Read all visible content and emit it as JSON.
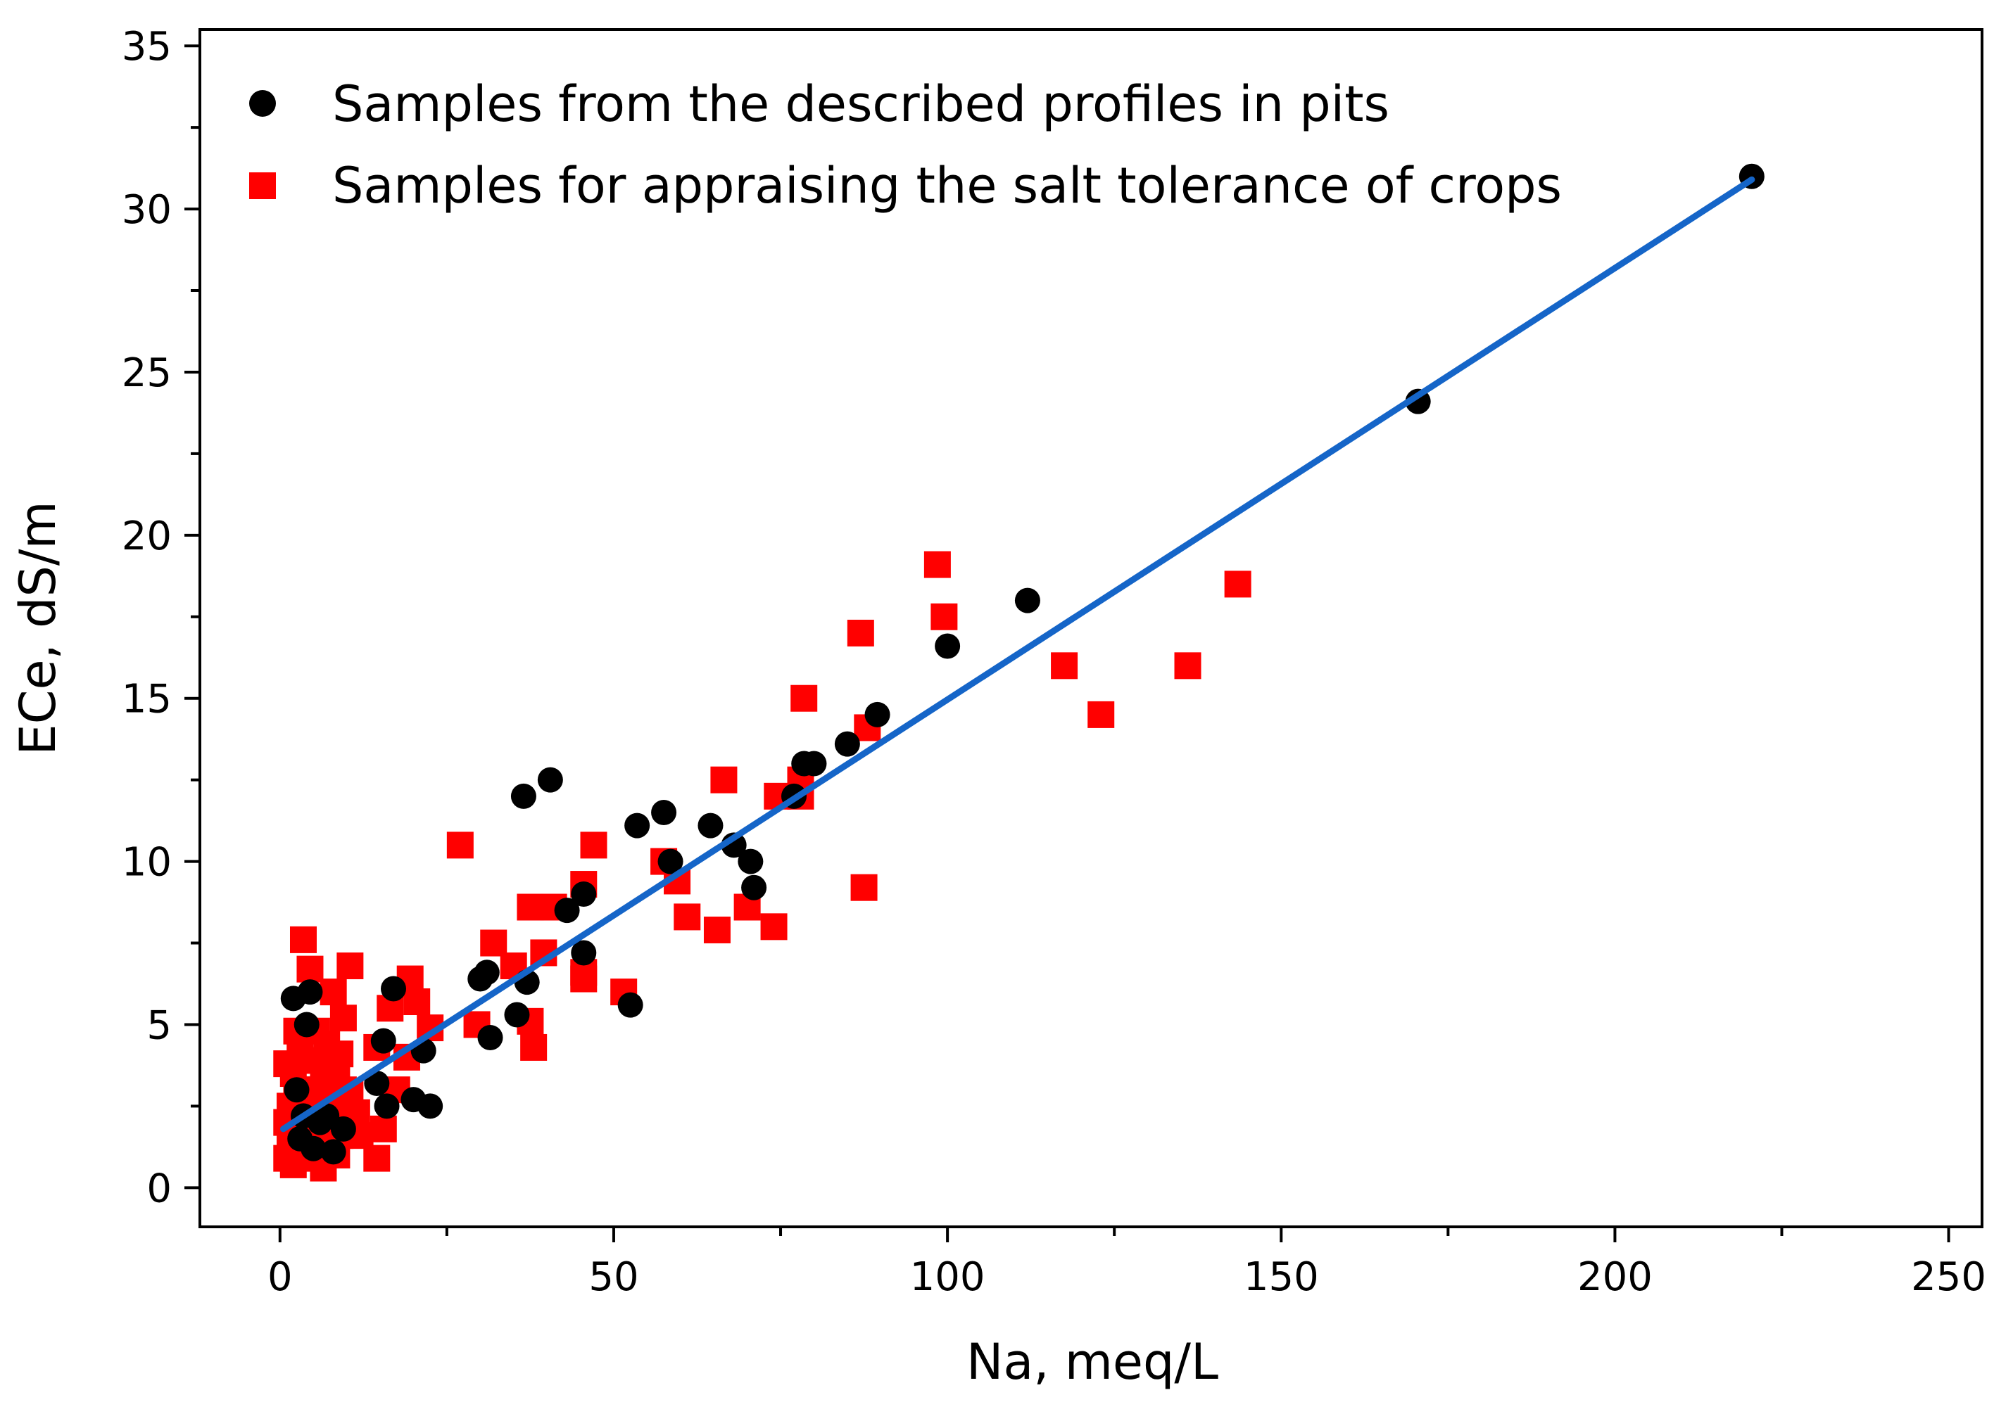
{
  "chart_data": {
    "type": "scatter",
    "title": "",
    "xlabel": "Na, meq/L",
    "ylabel": "ECe, dS/m",
    "xlim": [
      -12,
      255
    ],
    "ylim": [
      -1.2,
      35.5
    ],
    "x_ticks": [
      0,
      50,
      100,
      150,
      200,
      250
    ],
    "x_minor_ticks": [
      25,
      75,
      125,
      175,
      225
    ],
    "y_ticks": [
      0,
      5,
      10,
      15,
      20,
      25,
      30,
      35
    ],
    "y_minor_ticks": [
      2.5,
      7.5,
      12.5,
      17.5,
      22.5,
      27.5,
      32.5
    ],
    "grid": false,
    "legend_position": "top-left",
    "colors": {
      "pits": "#000000",
      "crops": "#ff0000",
      "fit": "#1565c8"
    },
    "series": [
      {
        "name": "Samples from the described profiles in pits",
        "marker": "circle",
        "color": "#000000",
        "points": [
          [
            220.5,
            31.0
          ],
          [
            170.5,
            24.1
          ],
          [
            112.0,
            18.0
          ],
          [
            100.0,
            16.6
          ],
          [
            89.5,
            14.5
          ],
          [
            85.0,
            13.6
          ],
          [
            80.0,
            13.0
          ],
          [
            78.5,
            13.0
          ],
          [
            77.0,
            12.0
          ],
          [
            40.5,
            12.5
          ],
          [
            36.5,
            12.0
          ],
          [
            57.5,
            11.5
          ],
          [
            53.5,
            11.1
          ],
          [
            64.5,
            11.1
          ],
          [
            68.0,
            10.5
          ],
          [
            58.5,
            10.0
          ],
          [
            70.5,
            10.0
          ],
          [
            71.0,
            9.2
          ],
          [
            45.5,
            9.0
          ],
          [
            43.0,
            8.5
          ],
          [
            45.5,
            7.2
          ],
          [
            31.0,
            6.6
          ],
          [
            30.0,
            6.4
          ],
          [
            37.0,
            6.3
          ],
          [
            17.0,
            6.1
          ],
          [
            35.5,
            5.3
          ],
          [
            52.5,
            5.6
          ],
          [
            31.5,
            4.6
          ],
          [
            15.5,
            4.5
          ],
          [
            21.5,
            4.2
          ],
          [
            14.5,
            3.2
          ],
          [
            16.0,
            2.5
          ],
          [
            20.0,
            2.7
          ],
          [
            22.5,
            2.5
          ],
          [
            2.0,
            5.8
          ],
          [
            4.0,
            5.0
          ],
          [
            4.5,
            6.0
          ],
          [
            8.0,
            1.1
          ],
          [
            5.0,
            1.2
          ],
          [
            3.0,
            1.5
          ],
          [
            6.0,
            2.0
          ],
          [
            9.5,
            1.8
          ],
          [
            7.0,
            2.2
          ],
          [
            2.5,
            3.0
          ],
          [
            3.5,
            2.2
          ]
        ]
      },
      {
        "name": "Samples for appraising the salt tolerance of crops",
        "marker": "square",
        "color": "#ff0000",
        "points": [
          [
            98.5,
            19.1
          ],
          [
            143.5,
            18.5
          ],
          [
            99.5,
            17.5
          ],
          [
            87.0,
            17.0
          ],
          [
            117.5,
            16.0
          ],
          [
            136.0,
            16.0
          ],
          [
            78.5,
            15.0
          ],
          [
            123.0,
            14.5
          ],
          [
            88.0,
            14.1
          ],
          [
            66.5,
            12.5
          ],
          [
            78.0,
            12.5
          ],
          [
            74.5,
            12.0
          ],
          [
            78.0,
            12.0
          ],
          [
            27.0,
            10.5
          ],
          [
            47.0,
            10.5
          ],
          [
            57.5,
            10.0
          ],
          [
            59.5,
            9.4
          ],
          [
            45.5,
            9.3
          ],
          [
            87.5,
            9.2
          ],
          [
            37.5,
            8.6
          ],
          [
            41.0,
            8.6
          ],
          [
            70.0,
            8.6
          ],
          [
            61.0,
            8.3
          ],
          [
            65.5,
            7.9
          ],
          [
            74.0,
            8.0
          ],
          [
            32.0,
            7.5
          ],
          [
            39.5,
            7.2
          ],
          [
            35.0,
            6.8
          ],
          [
            45.5,
            6.6
          ],
          [
            45.5,
            6.4
          ],
          [
            51.5,
            6.0
          ],
          [
            19.5,
            6.4
          ],
          [
            20.5,
            5.7
          ],
          [
            16.5,
            5.5
          ],
          [
            29.5,
            5.0
          ],
          [
            37.5,
            5.1
          ],
          [
            22.5,
            4.9
          ],
          [
            14.5,
            4.3
          ],
          [
            38.0,
            4.3
          ],
          [
            19.0,
            4.0
          ],
          [
            17.5,
            3.0
          ],
          [
            15.5,
            1.8
          ],
          [
            14.5,
            0.9
          ],
          [
            3.5,
            7.6
          ],
          [
            4.5,
            6.7
          ],
          [
            10.5,
            6.8
          ],
          [
            8.0,
            6.0
          ],
          [
            9.5,
            5.2
          ],
          [
            3.0,
            4.5
          ],
          [
            5.5,
            4.8
          ],
          [
            1.0,
            3.8
          ],
          [
            2.0,
            3.5
          ],
          [
            4.0,
            3.9
          ],
          [
            6.5,
            3.7
          ],
          [
            8.5,
            3.5
          ],
          [
            2.5,
            3.0
          ],
          [
            5.0,
            3.0
          ],
          [
            7.5,
            3.2
          ],
          [
            9.5,
            3.0
          ],
          [
            1.5,
            2.5
          ],
          [
            3.5,
            2.5
          ],
          [
            6.0,
            2.6
          ],
          [
            8.0,
            2.4
          ],
          [
            10.5,
            2.2
          ],
          [
            1.0,
            2.0
          ],
          [
            4.0,
            2.0
          ],
          [
            6.5,
            1.8
          ],
          [
            9.0,
            1.6
          ],
          [
            11.0,
            1.8
          ],
          [
            1.5,
            1.4
          ],
          [
            3.0,
            1.2
          ],
          [
            5.5,
            1.3
          ],
          [
            7.5,
            1.1
          ],
          [
            1.0,
            0.9
          ],
          [
            2.0,
            0.7
          ],
          [
            4.5,
            0.9
          ],
          [
            6.5,
            0.6
          ],
          [
            8.5,
            1.0
          ],
          [
            2.5,
            4.8
          ],
          [
            7.0,
            4.4
          ],
          [
            9.0,
            4.1
          ],
          [
            10.5,
            2.9
          ],
          [
            11.5,
            2.3
          ],
          [
            12.0,
            1.6
          ]
        ]
      }
    ],
    "fit_line": {
      "name": "linear fit",
      "color": "#1565c8",
      "x": [
        0.5,
        220.5
      ],
      "y": [
        1.8,
        30.9
      ]
    }
  }
}
